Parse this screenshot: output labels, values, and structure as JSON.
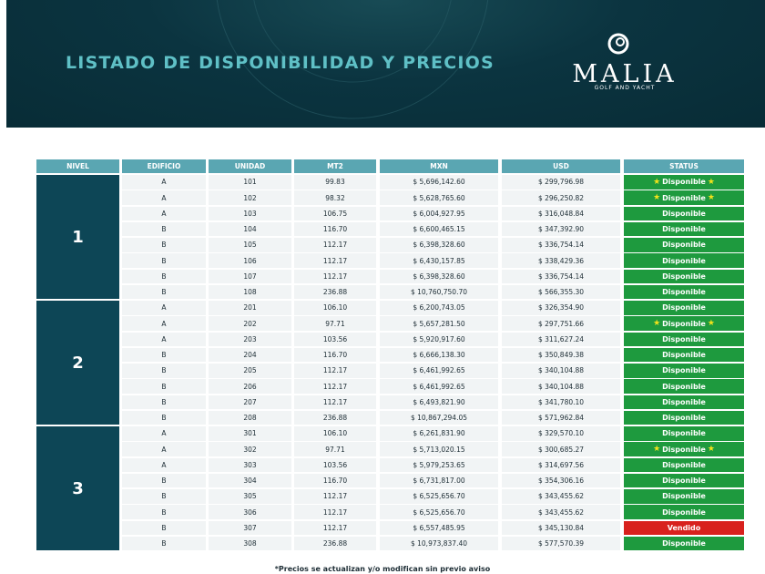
{
  "header": {
    "title": "LISTADO DE DISPONIBILIDAD Y PRECIOS",
    "brand": "MALIA",
    "tagline": "GOLF AND YACHT"
  },
  "table": {
    "columns": [
      "NIVEL",
      "EDIFICIO",
      "UNIDAD",
      "MT2",
      "MXN",
      "USD",
      "STATUS"
    ],
    "status_colors": {
      "Disponible": "#1e9a3e",
      "Vendido": "#d8211d"
    },
    "levels": [
      {
        "nivel": "1",
        "rows": [
          {
            "edificio": "A",
            "unidad": "101",
            "mt2": "99.83",
            "mxn": "$ 5,696,142.60",
            "usd": "$ 299,796.98",
            "status": "Disponible",
            "featured": true
          },
          {
            "edificio": "A",
            "unidad": "102",
            "mt2": "98.32",
            "mxn": "$ 5,628,765.60",
            "usd": "$ 296,250.82",
            "status": "Disponible",
            "featured": true
          },
          {
            "edificio": "A",
            "unidad": "103",
            "mt2": "106.75",
            "mxn": "$ 6,004,927.95",
            "usd": "$ 316,048.84",
            "status": "Disponible"
          },
          {
            "edificio": "B",
            "unidad": "104",
            "mt2": "116.70",
            "mxn": "$ 6,600,465.15",
            "usd": "$ 347,392.90",
            "status": "Disponible"
          },
          {
            "edificio": "B",
            "unidad": "105",
            "mt2": "112.17",
            "mxn": "$ 6,398,328.60",
            "usd": "$ 336,754.14",
            "status": "Disponible"
          },
          {
            "edificio": "B",
            "unidad": "106",
            "mt2": "112.17",
            "mxn": "$ 6,430,157.85",
            "usd": "$ 338,429.36",
            "status": "Disponible"
          },
          {
            "edificio": "B",
            "unidad": "107",
            "mt2": "112.17",
            "mxn": "$ 6,398,328.60",
            "usd": "$ 336,754.14",
            "status": "Disponible"
          },
          {
            "edificio": "B",
            "unidad": "108",
            "mt2": "236.88",
            "mxn": "$ 10,760,750.70",
            "usd": "$ 566,355.30",
            "status": "Disponible"
          }
        ]
      },
      {
        "nivel": "2",
        "rows": [
          {
            "edificio": "A",
            "unidad": "201",
            "mt2": "106.10",
            "mxn": "$ 6,200,743.05",
            "usd": "$ 326,354.90",
            "status": "Disponible"
          },
          {
            "edificio": "A",
            "unidad": "202",
            "mt2": "97.71",
            "mxn": "$ 5,657,281.50",
            "usd": "$ 297,751.66",
            "status": "Disponible",
            "featured": true
          },
          {
            "edificio": "A",
            "unidad": "203",
            "mt2": "103.56",
            "mxn": "$ 5,920,917.60",
            "usd": "$ 311,627.24",
            "status": "Disponible"
          },
          {
            "edificio": "B",
            "unidad": "204",
            "mt2": "116.70",
            "mxn": "$ 6,666,138.30",
            "usd": "$ 350,849.38",
            "status": "Disponible"
          },
          {
            "edificio": "B",
            "unidad": "205",
            "mt2": "112.17",
            "mxn": "$ 6,461,992.65",
            "usd": "$ 340,104.88",
            "status": "Disponible"
          },
          {
            "edificio": "B",
            "unidad": "206",
            "mt2": "112.17",
            "mxn": "$ 6,461,992.65",
            "usd": "$ 340,104.88",
            "status": "Disponible"
          },
          {
            "edificio": "B",
            "unidad": "207",
            "mt2": "112.17",
            "mxn": "$ 6,493,821.90",
            "usd": "$ 341,780.10",
            "status": "Disponible"
          },
          {
            "edificio": "B",
            "unidad": "208",
            "mt2": "236.88",
            "mxn": "$ 10,867,294.05",
            "usd": "$ 571,962.84",
            "status": "Disponible"
          }
        ]
      },
      {
        "nivel": "3",
        "rows": [
          {
            "edificio": "A",
            "unidad": "301",
            "mt2": "106.10",
            "mxn": "$ 6,261,831.90",
            "usd": "$ 329,570.10",
            "status": "Disponible"
          },
          {
            "edificio": "A",
            "unidad": "302",
            "mt2": "97.71",
            "mxn": "$ 5,713,020.15",
            "usd": "$ 300,685.27",
            "status": "Disponible",
            "featured": true
          },
          {
            "edificio": "A",
            "unidad": "303",
            "mt2": "103.56",
            "mxn": "$ 5,979,253.65",
            "usd": "$ 314,697.56",
            "status": "Disponible"
          },
          {
            "edificio": "B",
            "unidad": "304",
            "mt2": "116.70",
            "mxn": "$ 6,731,817.00",
            "usd": "$ 354,306.16",
            "status": "Disponible"
          },
          {
            "edificio": "B",
            "unidad": "305",
            "mt2": "112.17",
            "mxn": "$ 6,525,656.70",
            "usd": "$ 343,455.62",
            "status": "Disponible"
          },
          {
            "edificio": "B",
            "unidad": "306",
            "mt2": "112.17",
            "mxn": "$ 6,525,656.70",
            "usd": "$ 343,455.62",
            "status": "Disponible"
          },
          {
            "edificio": "B",
            "unidad": "307",
            "mt2": "112.17",
            "mxn": "$ 6,557,485.95",
            "usd": "$ 345,130.84",
            "status": "Vendido"
          },
          {
            "edificio": "B",
            "unidad": "308",
            "mt2": "236.88",
            "mxn": "$ 10,973,837.40",
            "usd": "$ 577,570.39",
            "status": "Disponible"
          }
        ]
      }
    ]
  },
  "footnote": "*Precios se actualizan y/o modifican sin previo aviso"
}
